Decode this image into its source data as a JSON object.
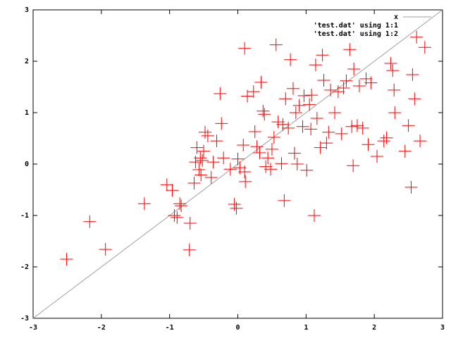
{
  "chart_data": {
    "type": "scatter",
    "xlim": [
      -3,
      3
    ],
    "ylim": [
      -3,
      3
    ],
    "xticks": [
      -3,
      -2,
      -1,
      0,
      1,
      2,
      3
    ],
    "yticks": [
      -3,
      -2,
      -1,
      0,
      1,
      2,
      3
    ],
    "legend": "top-right",
    "series": [
      {
        "name": "x",
        "color": "#a0a0a0",
        "style": "line",
        "x": [
          -3,
          3
        ],
        "values": [
          -3,
          3
        ]
      },
      {
        "name": "'test.dat' using 1:1"
      },
      {
        "name": "'test.dat' using 1:2",
        "color": "#ff0000",
        "style": "points",
        "x": [
          -2.51,
          -2.17,
          -1.94,
          -1.37,
          -1.04,
          -0.96,
          -0.93,
          -0.89,
          -0.85,
          -0.83,
          -0.7,
          -0.71,
          -0.64,
          -0.62,
          -0.6,
          -0.57,
          -0.54,
          -0.52,
          -0.5,
          -0.48,
          -0.44,
          -0.55,
          -0.39,
          -0.36,
          -0.31,
          -0.26,
          -0.24,
          -0.21,
          -0.11,
          -0.05,
          -0.02,
          0,
          0.03,
          0.08,
          0.11,
          0.1,
          0.14,
          0.23,
          0.25,
          0.28,
          0.32,
          0.34,
          0.37,
          0.39,
          0.41,
          0.44,
          0.48,
          0.5,
          0.53,
          0.56,
          0.59,
          0.64,
          0.66,
          0.68,
          0.7,
          0.74,
          0.77,
          0.81,
          0.83,
          0.85,
          0.87,
          0.9,
          0.95,
          0.97,
          1.01,
          1.05,
          1.08,
          1.12,
          1.14,
          1.16,
          1.21,
          1.24,
          1.26,
          1.3,
          1.33,
          1.36,
          1.42,
          1.47,
          1.52,
          1.55,
          1.59,
          1.64,
          1.67,
          1.69,
          1.7,
          1.75,
          1.78,
          1.83,
          1.88,
          1.91,
          1.95,
          2.04,
          2.14,
          2.18,
          2.24,
          2.27,
          2.29,
          2.3,
          2.45,
          2.5,
          2.54,
          2.56,
          2.59,
          2.62,
          2.67,
          2.74,
          1.07,
          0.1
        ],
        "values": [
          -1.85,
          -1.12,
          -1.66,
          -0.77,
          -0.4,
          -0.51,
          -1.0,
          -1.04,
          -0.77,
          -0.81,
          -1.15,
          -1.67,
          -0.37,
          0.04,
          0.32,
          -0.11,
          -0.21,
          0.07,
          0.25,
          0.62,
          0.55,
          0.12,
          -0.26,
          0.04,
          0.45,
          1.37,
          0.79,
          0.12,
          -0.1,
          -0.78,
          -0.86,
          0.1,
          -0.07,
          0.37,
          -0.34,
          2.25,
          1.32,
          1.41,
          0.63,
          0.34,
          0.22,
          1.59,
          1.03,
          0.97,
          -0.05,
          0.12,
          -0.1,
          0.29,
          0.52,
          2.32,
          0.82,
          0.01,
          0.77,
          -0.71,
          1.27,
          0.7,
          2.03,
          1.47,
          0.21,
          1.0,
          0,
          1.14,
          0.73,
          1.33,
          -0.12,
          1.16,
          1.34,
          -1.0,
          1.93,
          0.89,
          0.32,
          2.12,
          1.63,
          0.41,
          0.62,
          1.44,
          1.0,
          1.41,
          0.59,
          1.48,
          1.62,
          2.23,
          0.73,
          -0.03,
          1.85,
          0.75,
          1.52,
          0.7,
          1.66,
          0.38,
          1.58,
          0.15,
          0.45,
          0.51,
          1.96,
          1.82,
          1.44,
          1.0,
          0.25,
          0.75,
          -0.45,
          1.74,
          1.27,
          2.47,
          0.45,
          2.27,
          0.68,
          -0.15
        ]
      }
    ]
  }
}
